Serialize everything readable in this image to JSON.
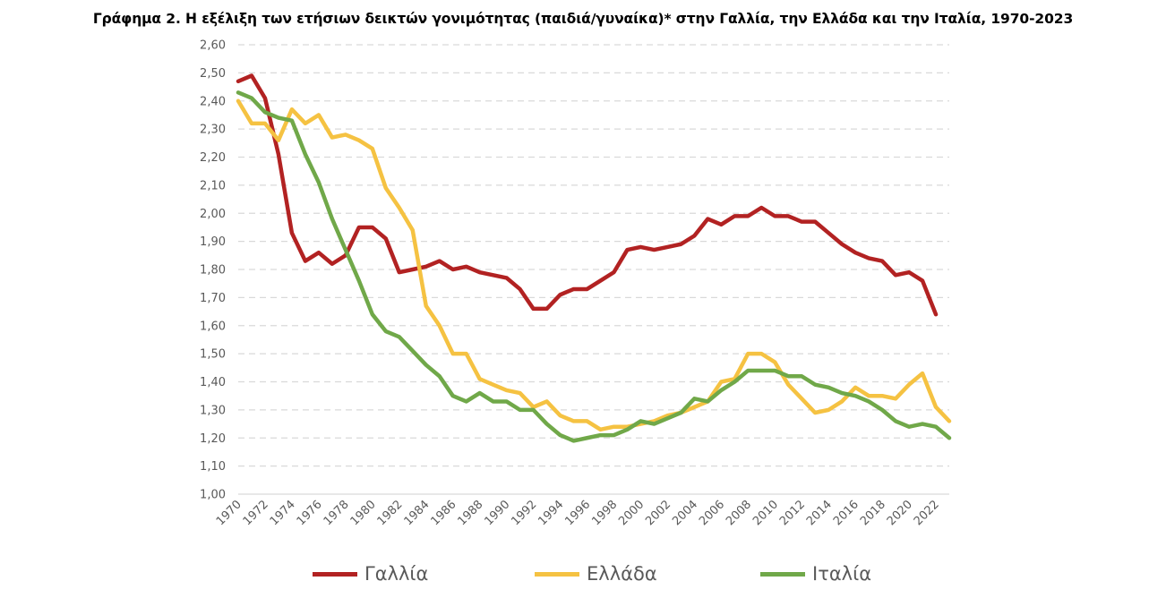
{
  "chart_data": {
    "type": "line",
    "title": "Γράφημα 2. Η εξέλιξη των ετήσιων δεικτών γονιμότητας (παιδιά/γυναίκα)* στην Γαλλία, την Ελλάδα και την Ιταλία, 1970-2023",
    "xlabel": "",
    "ylabel": "",
    "ylim": [
      1.0,
      2.6
    ],
    "y_ticks": [
      "1,00",
      "1,10",
      "1,20",
      "1,30",
      "1,40",
      "1,50",
      "1,60",
      "1,70",
      "1,80",
      "1,90",
      "2,00",
      "2,10",
      "2,20",
      "2,30",
      "2,40",
      "2,50",
      "2,60"
    ],
    "x": [
      1970,
      1971,
      1972,
      1973,
      1974,
      1975,
      1976,
      1977,
      1978,
      1979,
      1980,
      1981,
      1982,
      1983,
      1984,
      1985,
      1986,
      1987,
      1988,
      1989,
      1990,
      1991,
      1992,
      1993,
      1994,
      1995,
      1996,
      1997,
      1998,
      1999,
      2000,
      2001,
      2002,
      2003,
      2004,
      2005,
      2006,
      2007,
      2008,
      2009,
      2010,
      2011,
      2012,
      2013,
      2014,
      2015,
      2016,
      2017,
      2018,
      2019,
      2020,
      2021,
      2022,
      2023
    ],
    "x_tick_labels": [
      "1970",
      "1972",
      "1974",
      "1976",
      "1978",
      "1980",
      "1982",
      "1984",
      "1986",
      "1988",
      "1990",
      "1992",
      "1994",
      "1996",
      "1998",
      "2000",
      "2002",
      "2004",
      "2006",
      "2008",
      "2010",
      "2012",
      "2014",
      "2016",
      "2018",
      "2020",
      "2022"
    ],
    "grid": true,
    "legend_position": "bottom",
    "series": [
      {
        "name": "Γαλλία",
        "color": "#b22222",
        "values": [
          2.47,
          2.49,
          2.41,
          2.21,
          1.93,
          1.83,
          1.86,
          1.82,
          1.85,
          1.95,
          1.95,
          1.91,
          1.79,
          1.8,
          1.81,
          1.83,
          1.8,
          1.81,
          1.79,
          1.78,
          1.77,
          1.73,
          1.66,
          1.66,
          1.71,
          1.73,
          1.73,
          1.76,
          1.79,
          1.87,
          1.88,
          1.87,
          1.88,
          1.89,
          1.92,
          1.98,
          1.96,
          1.99,
          1.99,
          2.02,
          1.99,
          1.99,
          1.97,
          1.97,
          1.93,
          1.89,
          1.86,
          1.84,
          1.83,
          1.78,
          1.79,
          1.76,
          1.64,
          null
        ]
      },
      {
        "name": "Ελλάδα",
        "color": "#f5c242",
        "values": [
          2.4,
          2.32,
          2.32,
          2.26,
          2.37,
          2.32,
          2.35,
          2.27,
          2.28,
          2.26,
          2.23,
          2.09,
          2.02,
          1.94,
          1.67,
          1.6,
          1.5,
          1.5,
          1.41,
          1.39,
          1.37,
          1.36,
          1.31,
          1.33,
          1.28,
          1.26,
          1.26,
          1.23,
          1.24,
          1.24,
          1.25,
          1.26,
          1.28,
          1.29,
          1.31,
          1.33,
          1.4,
          1.41,
          1.5,
          1.5,
          1.47,
          1.39,
          1.34,
          1.29,
          1.3,
          1.33,
          1.38,
          1.35,
          1.35,
          1.34,
          1.39,
          1.43,
          1.31,
          1.26
        ]
      },
      {
        "name": "Ιταλία",
        "color": "#70a849",
        "values": [
          2.43,
          2.41,
          2.36,
          2.34,
          2.33,
          2.21,
          2.11,
          1.98,
          1.87,
          1.76,
          1.64,
          1.58,
          1.56,
          1.51,
          1.46,
          1.42,
          1.35,
          1.33,
          1.36,
          1.33,
          1.33,
          1.3,
          1.3,
          1.25,
          1.21,
          1.19,
          1.2,
          1.21,
          1.21,
          1.23,
          1.26,
          1.25,
          1.27,
          1.29,
          1.34,
          1.33,
          1.37,
          1.4,
          1.44,
          1.44,
          1.44,
          1.42,
          1.42,
          1.39,
          1.38,
          1.36,
          1.35,
          1.33,
          1.3,
          1.26,
          1.24,
          1.25,
          1.24,
          1.2
        ]
      }
    ]
  }
}
